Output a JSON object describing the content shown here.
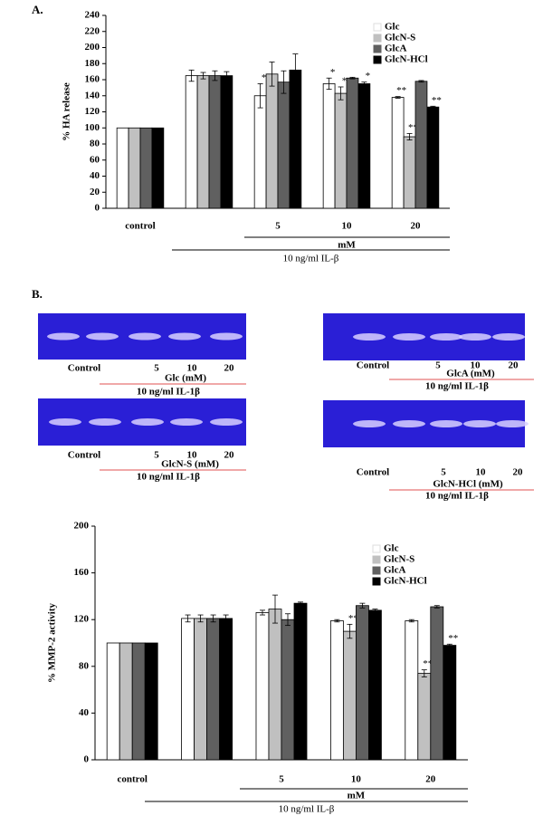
{
  "panel_labels": [
    "A.",
    "B."
  ],
  "chart_data": [
    {
      "type": "bar",
      "ylabel": "% HA release",
      "categories": [
        "control",
        null,
        "5",
        "10",
        "20"
      ],
      "ylim": [
        0,
        240
      ],
      "yticks": [
        0,
        20,
        40,
        60,
        80,
        100,
        120,
        140,
        160,
        180,
        200,
        220,
        240
      ],
      "legend": "upper right",
      "xlabel": "mM",
      "treatment_label": "10 ng/ml IL-β",
      "series": [
        {
          "name": "Glc",
          "color": "#ffffff",
          "values": [
            100,
            165,
            140,
            155,
            138
          ],
          "errors": [
            null,
            7,
            15,
            7,
            1
          ],
          "annotations": [
            null,
            null,
            "*",
            "*",
            "**"
          ]
        },
        {
          "name": "GlcN-S",
          "color": "#c0c0c0",
          "values": [
            100,
            165,
            167,
            143,
            89
          ],
          "errors": [
            null,
            4,
            15,
            8,
            4
          ],
          "annotations": [
            null,
            null,
            null,
            "*",
            "**"
          ]
        },
        {
          "name": "GlcA",
          "color": "#606060",
          "values": [
            100,
            165,
            157,
            162,
            158
          ],
          "errors": [
            null,
            6,
            14,
            1,
            1
          ],
          "annotations": [
            null,
            null,
            null,
            null,
            null
          ]
        },
        {
          "name": "GlcN-HCl",
          "color": "#000000",
          "values": [
            100,
            165,
            172,
            155,
            126
          ],
          "errors": [
            null,
            5,
            20,
            2,
            1
          ],
          "annotations": [
            null,
            null,
            null,
            "*",
            "**"
          ]
        }
      ]
    },
    {
      "type": "bar",
      "ylabel": "% MMP-2 activity",
      "categories": [
        "control",
        null,
        "5",
        "10",
        "20"
      ],
      "ylim": [
        0,
        200
      ],
      "yticks": [
        0,
        40,
        80,
        120,
        160,
        200
      ],
      "legend": "upper right",
      "xlabel": "mM",
      "treatment_label": "10 ng/ml IL-β",
      "series": [
        {
          "name": "Glc",
          "color": "#ffffff",
          "values": [
            100,
            121,
            126,
            119,
            119
          ],
          "errors": [
            null,
            3,
            2,
            1,
            1
          ],
          "annotations": [
            null,
            null,
            null,
            null,
            null
          ]
        },
        {
          "name": "GlcN-S",
          "color": "#c0c0c0",
          "values": [
            100,
            121,
            129,
            110,
            74
          ],
          "errors": [
            null,
            3,
            12,
            6,
            3
          ],
          "annotations": [
            null,
            null,
            null,
            "**",
            "**"
          ]
        },
        {
          "name": "GlcA",
          "color": "#606060",
          "values": [
            100,
            121,
            120,
            132,
            131
          ],
          "errors": [
            null,
            3,
            5,
            2,
            1
          ],
          "annotations": [
            null,
            null,
            null,
            null,
            null
          ]
        },
        {
          "name": "GlcN-HCl",
          "color": "#000000",
          "values": [
            100,
            121,
            134,
            128,
            98
          ],
          "errors": [
            null,
            3,
            1,
            1,
            1
          ],
          "annotations": [
            null,
            null,
            null,
            null,
            "**"
          ]
        }
      ]
    }
  ],
  "gels": [
    {
      "lane_labels": [
        "Control",
        "5",
        "10",
        "20"
      ],
      "caption": "Glc (mM)",
      "treatment": "10 ng/ml IL-1β"
    },
    {
      "lane_labels": [
        "Control",
        "5",
        "10",
        "20"
      ],
      "caption": "GlcA (mM)",
      "treatment": "10 ng/ml IL-1β"
    },
    {
      "lane_labels": [
        "Control",
        "5",
        "10",
        "20"
      ],
      "caption": "GlcN-S (mM)",
      "treatment": "10 ng/ml IL-1β"
    },
    {
      "lane_labels": [
        "Control",
        "5",
        "10",
        "20"
      ],
      "caption": "GlcN-HCl (mM)",
      "treatment": "10 ng/ml IL-1β"
    }
  ]
}
